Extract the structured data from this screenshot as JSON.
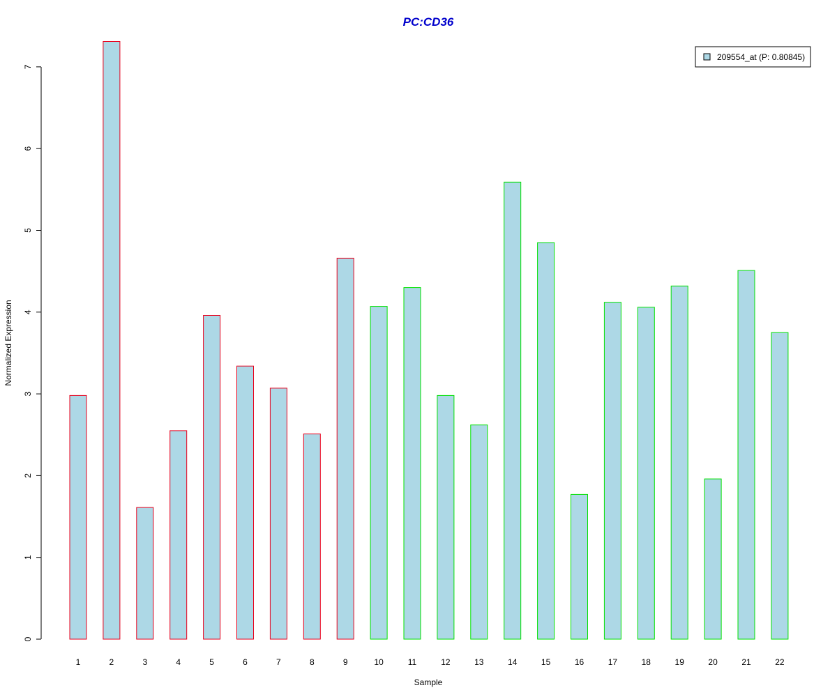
{
  "chart_data": {
    "type": "bar",
    "title": "PC:CD36",
    "xlabel": "Sample",
    "ylabel": "Normalized Expression",
    "categories": [
      "1",
      "2",
      "3",
      "4",
      "5",
      "6",
      "7",
      "8",
      "9",
      "10",
      "11",
      "12",
      "13",
      "14",
      "15",
      "16",
      "17",
      "18",
      "19",
      "20",
      "21",
      "22"
    ],
    "series": [
      {
        "name": "209554_at (P: 0.80845)",
        "values": [
          2.98,
          7.31,
          1.61,
          2.55,
          3.96,
          3.34,
          3.07,
          2.51,
          4.66,
          4.07,
          4.3,
          2.98,
          2.62,
          5.59,
          4.85,
          1.77,
          4.12,
          4.06,
          4.32,
          1.96,
          4.51,
          3.75
        ]
      }
    ],
    "group_outline_colors": [
      "#e8001c",
      "#e8001c",
      "#e8001c",
      "#e8001c",
      "#e8001c",
      "#e8001c",
      "#e8001c",
      "#e8001c",
      "#e8001c",
      "#00e000",
      "#00e000",
      "#00e000",
      "#00e000",
      "#00e000",
      "#00e000",
      "#00e000",
      "#00e000",
      "#00e000",
      "#00e000",
      "#00e000",
      "#00e000",
      "#00e000"
    ],
    "yticks": [
      "0",
      "1",
      "2",
      "3",
      "4",
      "5",
      "6",
      "7"
    ],
    "ylim": [
      0,
      7.31
    ],
    "grid": false,
    "legend_position": "top-right",
    "colors": {
      "bar_fill": "#add8e6",
      "title": "#0000cc",
      "axis": "#000000"
    }
  }
}
